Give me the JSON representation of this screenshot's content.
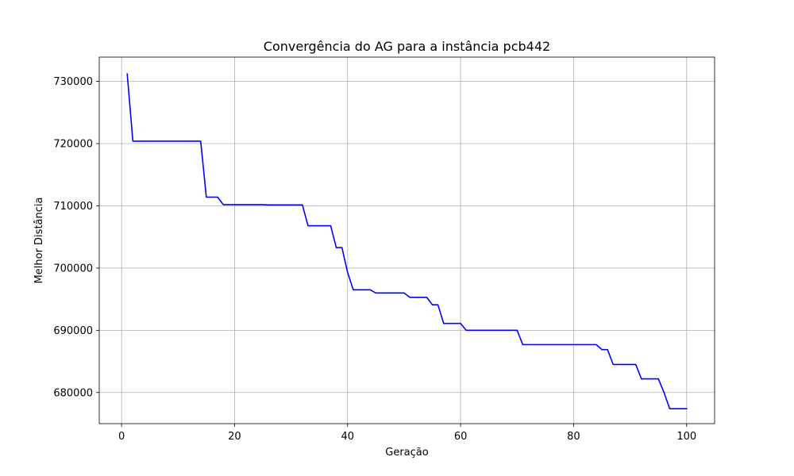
{
  "chart_data": {
    "type": "line",
    "title": "Convergência do AG para a instância pcb442",
    "xlabel": "Geração",
    "ylabel": "Melhor Distância",
    "xlim": [
      -3.95,
      104.95
    ],
    "ylim": [
      675000,
      733900
    ],
    "xticks": [
      0,
      20,
      40,
      60,
      80,
      100
    ],
    "yticks": [
      680000,
      690000,
      700000,
      710000,
      720000,
      730000
    ],
    "xtick_labels": [
      "0",
      "20",
      "40",
      "60",
      "80",
      "100"
    ],
    "ytick_labels": [
      "680000",
      "690000",
      "700000",
      "710000",
      "720000",
      "730000"
    ],
    "grid": true,
    "color": "#0000ff",
    "series": [
      {
        "x": [
          1,
          2,
          3,
          4,
          5,
          6,
          7,
          8,
          9,
          10,
          11,
          12,
          13,
          14,
          15,
          16,
          17,
          18,
          19,
          20,
          21,
          22,
          23,
          24,
          25,
          26,
          27,
          28,
          29,
          30,
          31,
          32,
          33,
          34,
          35,
          36,
          37,
          38,
          39,
          40,
          41,
          42,
          43,
          44,
          45,
          46,
          47,
          48,
          49,
          50,
          51,
          52,
          53,
          54,
          55,
          56,
          57,
          58,
          59,
          60,
          61,
          62,
          63,
          64,
          65,
          66,
          67,
          68,
          69,
          70,
          71,
          72,
          73,
          74,
          75,
          76,
          77,
          78,
          79,
          80,
          81,
          82,
          83,
          84,
          85,
          86,
          87,
          88,
          89,
          90,
          91,
          92,
          93,
          94,
          95,
          96,
          97,
          98,
          99,
          100
        ],
        "y": [
          731200,
          720400,
          720400,
          720400,
          720400,
          720400,
          720400,
          720400,
          720400,
          720400,
          720400,
          720400,
          720400,
          720400,
          711400,
          711400,
          711400,
          710200,
          710200,
          710200,
          710200,
          710200,
          710200,
          710200,
          710200,
          710150,
          710150,
          710150,
          710150,
          710150,
          710150,
          710150,
          706800,
          706800,
          706800,
          706800,
          706800,
          703300,
          703300,
          699300,
          696500,
          696500,
          696500,
          696500,
          696000,
          696000,
          696000,
          696000,
          696000,
          696000,
          695300,
          695300,
          695300,
          695300,
          694100,
          694100,
          691100,
          691100,
          691100,
          691100,
          690000,
          690000,
          690000,
          690000,
          690000,
          690000,
          690000,
          690000,
          690000,
          690000,
          687700,
          687700,
          687700,
          687700,
          687700,
          687700,
          687700,
          687700,
          687700,
          687700,
          687700,
          687700,
          687700,
          687700,
          686900,
          686900,
          684500,
          684500,
          684500,
          684500,
          684500,
          682200,
          682200,
          682200,
          682200,
          680000,
          677400,
          677400,
          677400,
          677400
        ]
      }
    ]
  }
}
